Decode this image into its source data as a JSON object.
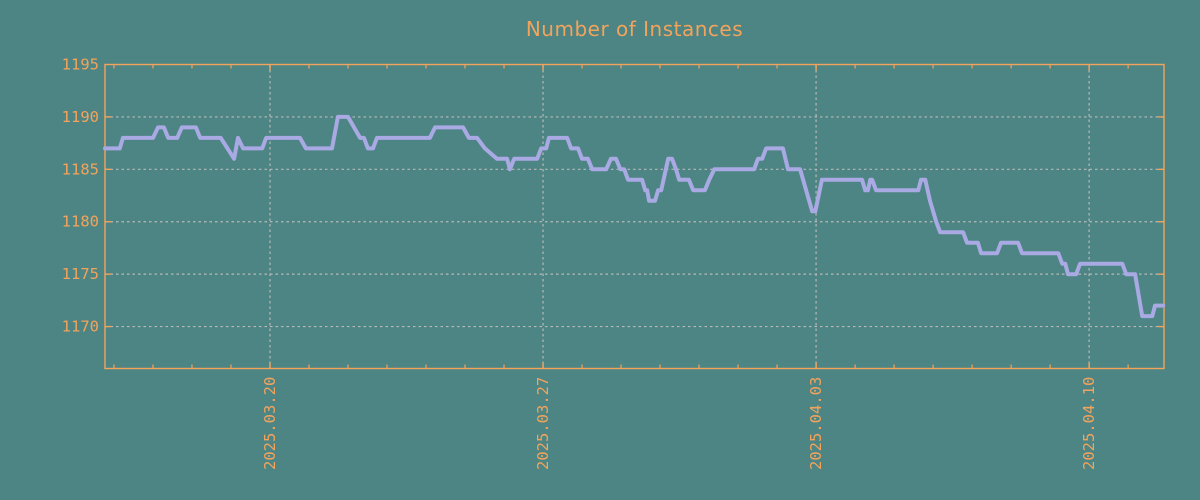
{
  "title": "Number of Instances",
  "colors": {
    "background": "#4d8584",
    "axis": "#f2a35c",
    "line": "#a9a9e3",
    "grid": "#b9b9b9"
  },
  "chart_data": {
    "type": "line",
    "title": "Number of Instances",
    "legend": false,
    "grid": true,
    "x_unit": "days since 2025.03.16 (approx left edge of plot)",
    "x_range": [
      0,
      27.15
    ],
    "ylim": [
      1166,
      1195
    ],
    "y_ticks": [
      1170,
      1175,
      1180,
      1185,
      1190,
      1195
    ],
    "x_major_ticks": [
      {
        "day": 4.23,
        "label": "2025.03.20"
      },
      {
        "day": 11.23,
        "label": "2025.03.27"
      },
      {
        "day": 18.23,
        "label": "2025.04.03"
      },
      {
        "day": 25.23,
        "label": "2025.04.10"
      }
    ],
    "x_minor_ticks": {
      "first_day": 0.23,
      "step": 1,
      "count": 27
    },
    "series": [
      {
        "name": "Number of Instances",
        "points": [
          [
            0.0,
            1187
          ],
          [
            0.38,
            1187
          ],
          [
            0.46,
            1188
          ],
          [
            1.23,
            1188
          ],
          [
            1.36,
            1189
          ],
          [
            1.51,
            1189
          ],
          [
            1.62,
            1188
          ],
          [
            1.85,
            1188
          ],
          [
            1.97,
            1189
          ],
          [
            2.33,
            1189
          ],
          [
            2.44,
            1188
          ],
          [
            2.97,
            1188
          ],
          [
            3.31,
            1186
          ],
          [
            3.41,
            1188
          ],
          [
            3.54,
            1187
          ],
          [
            4.03,
            1187
          ],
          [
            4.13,
            1188
          ],
          [
            5.0,
            1188
          ],
          [
            5.15,
            1187
          ],
          [
            5.82,
            1187
          ],
          [
            5.97,
            1190
          ],
          [
            6.23,
            1190
          ],
          [
            6.54,
            1188
          ],
          [
            6.64,
            1188
          ],
          [
            6.74,
            1187
          ],
          [
            6.87,
            1187
          ],
          [
            6.97,
            1188
          ],
          [
            8.33,
            1188
          ],
          [
            8.46,
            1189
          ],
          [
            9.18,
            1189
          ],
          [
            9.33,
            1188
          ],
          [
            9.54,
            1188
          ],
          [
            9.74,
            1187
          ],
          [
            10.05,
            1186
          ],
          [
            10.31,
            1186
          ],
          [
            10.38,
            1185
          ],
          [
            10.49,
            1186
          ],
          [
            11.08,
            1186
          ],
          [
            11.18,
            1187
          ],
          [
            11.31,
            1187
          ],
          [
            11.38,
            1188
          ],
          [
            11.85,
            1188
          ],
          [
            11.95,
            1187
          ],
          [
            12.13,
            1187
          ],
          [
            12.23,
            1186
          ],
          [
            12.38,
            1186
          ],
          [
            12.49,
            1185
          ],
          [
            12.85,
            1185
          ],
          [
            12.97,
            1186
          ],
          [
            13.1,
            1186
          ],
          [
            13.21,
            1185
          ],
          [
            13.31,
            1185
          ],
          [
            13.41,
            1184
          ],
          [
            13.77,
            1184
          ],
          [
            13.85,
            1183
          ],
          [
            13.9,
            1183
          ],
          [
            13.95,
            1182
          ],
          [
            14.1,
            1182
          ],
          [
            14.18,
            1183
          ],
          [
            14.26,
            1183
          ],
          [
            14.44,
            1186
          ],
          [
            14.54,
            1186
          ],
          [
            14.64,
            1185
          ],
          [
            14.72,
            1184
          ],
          [
            14.97,
            1184
          ],
          [
            15.08,
            1183
          ],
          [
            15.38,
            1183
          ],
          [
            15.49,
            1184
          ],
          [
            15.62,
            1185
          ],
          [
            16.64,
            1185
          ],
          [
            16.74,
            1186
          ],
          [
            16.85,
            1186
          ],
          [
            16.95,
            1187
          ],
          [
            17.38,
            1187
          ],
          [
            17.51,
            1185
          ],
          [
            17.82,
            1185
          ],
          [
            18.13,
            1181
          ],
          [
            18.21,
            1181
          ],
          [
            18.38,
            1184
          ],
          [
            19.41,
            1184
          ],
          [
            19.49,
            1183
          ],
          [
            19.56,
            1183
          ],
          [
            19.62,
            1184
          ],
          [
            19.67,
            1184
          ],
          [
            19.77,
            1183
          ],
          [
            20.85,
            1183
          ],
          [
            20.92,
            1184
          ],
          [
            21.03,
            1184
          ],
          [
            21.15,
            1182
          ],
          [
            21.31,
            1180
          ],
          [
            21.41,
            1179
          ],
          [
            22.0,
            1179
          ],
          [
            22.1,
            1178
          ],
          [
            22.38,
            1178
          ],
          [
            22.46,
            1177
          ],
          [
            22.87,
            1177
          ],
          [
            22.97,
            1178
          ],
          [
            23.41,
            1178
          ],
          [
            23.51,
            1177
          ],
          [
            24.44,
            1177
          ],
          [
            24.54,
            1176
          ],
          [
            24.62,
            1176
          ],
          [
            24.69,
            1175
          ],
          [
            24.9,
            1175
          ],
          [
            25.0,
            1176
          ],
          [
            26.08,
            1176
          ],
          [
            26.18,
            1175
          ],
          [
            26.41,
            1175
          ],
          [
            26.59,
            1171
          ],
          [
            26.85,
            1171
          ],
          [
            26.92,
            1172
          ],
          [
            27.13,
            1172
          ]
        ]
      }
    ]
  }
}
